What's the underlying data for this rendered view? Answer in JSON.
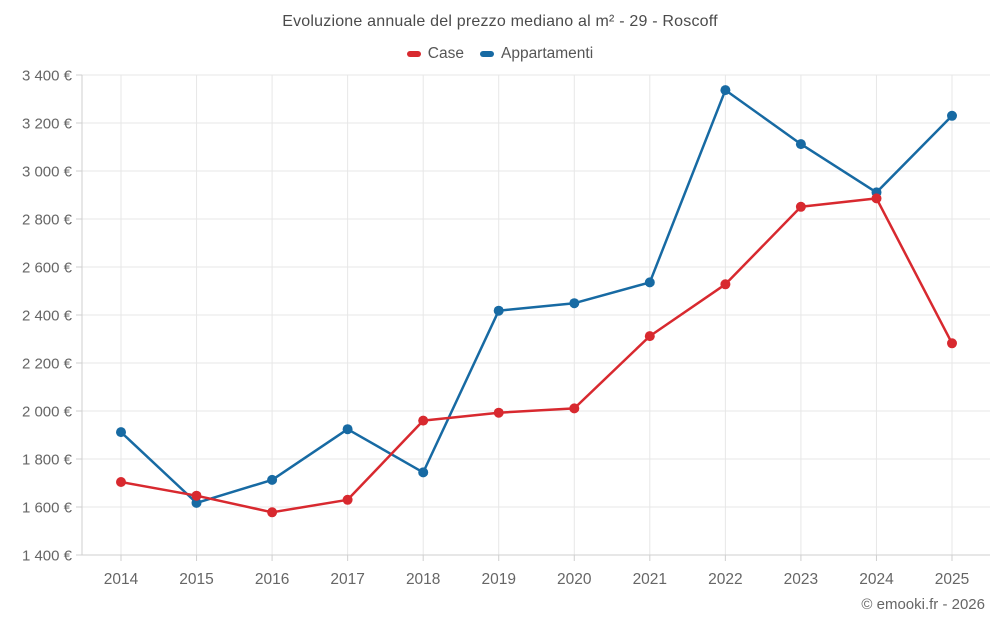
{
  "title": "Evoluzione annuale del prezzo mediano al m² - 29 - Roscoff",
  "footer": "© emooki.fr - 2026",
  "colors": {
    "case": "#d8292f",
    "appartamenti": "#176aa3",
    "grid": "#e7e7e7",
    "axis": "#cfcfcf",
    "tick_label": "#666666"
  },
  "chart_data": {
    "type": "line",
    "x": [
      2014,
      2015,
      2016,
      2017,
      2018,
      2019,
      2020,
      2021,
      2022,
      2023,
      2024,
      2025
    ],
    "series": [
      {
        "name": "Case",
        "color": "#d8292f",
        "values": [
          1704,
          1647,
          1578,
          1630,
          1960,
          1993,
          2011,
          2312,
          2528,
          2851,
          2886,
          2282
        ]
      },
      {
        "name": "Appartamenti",
        "color": "#176aa3",
        "values": [
          1912,
          1617,
          1713,
          1924,
          1744,
          2418,
          2449,
          2536,
          3337,
          3112,
          2911,
          3230
        ]
      }
    ],
    "title": "Evoluzione annuale del prezzo mediano al m² - 29 - Roscoff",
    "xlabel": "",
    "ylabel": "",
    "ylim": [
      1400,
      3400
    ],
    "ytick_step": 200,
    "ytick_suffix": " €",
    "grid": true,
    "legend_position": "top"
  }
}
